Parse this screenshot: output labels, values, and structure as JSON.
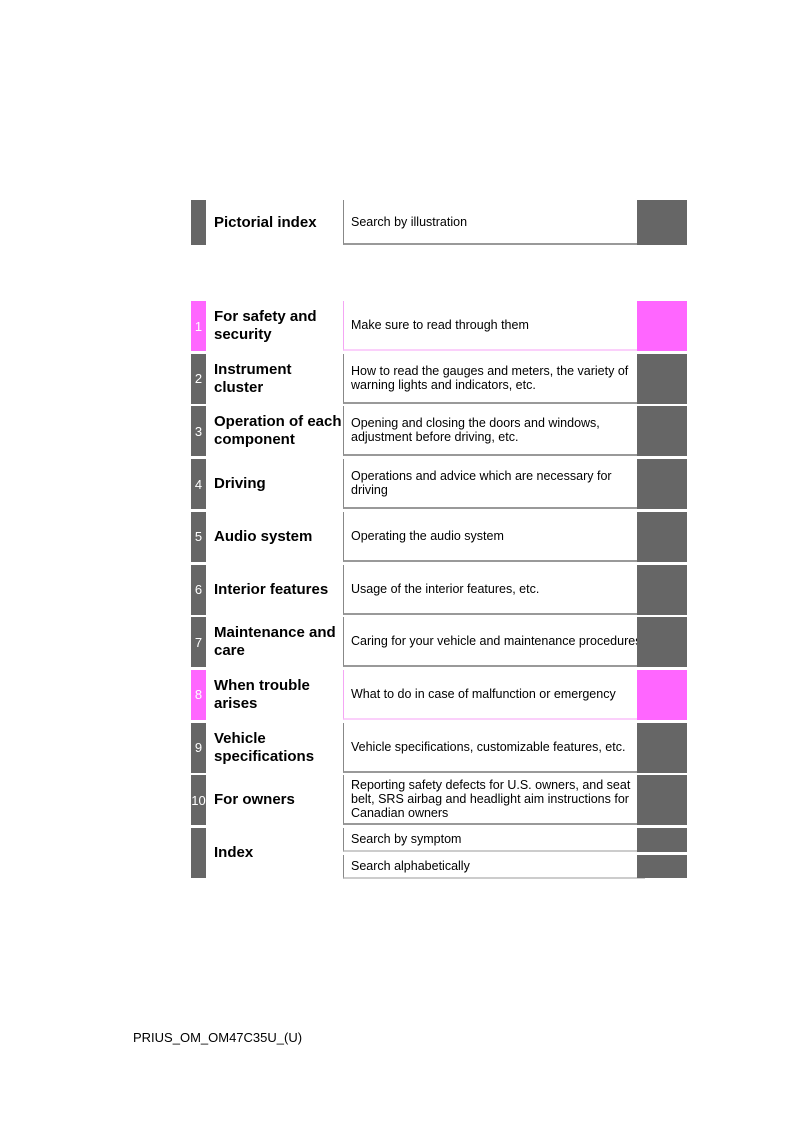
{
  "pictorial": {
    "title": "Pictorial index",
    "description": "Search by illustration"
  },
  "chapters": [
    {
      "number": "1",
      "title": "For safety and security",
      "description": "Make sure to read through them",
      "color": "#ff66ff"
    },
    {
      "number": "2",
      "title": "Instrument cluster",
      "description": "How to read the gauges and meters, the variety of warning lights and indicators, etc.",
      "color": "#666666"
    },
    {
      "number": "3",
      "title": "Operation of each component",
      "description": "Opening and closing the doors and windows, adjustment before driving, etc.",
      "color": "#666666"
    },
    {
      "number": "4",
      "title": "Driving",
      "description": "Operations and advice which are necessary for driving",
      "color": "#666666"
    },
    {
      "number": "5",
      "title": "Audio system",
      "description": "Operating the audio system",
      "color": "#666666"
    },
    {
      "number": "6",
      "title": "Interior features",
      "description": "Usage of the interior features, etc.",
      "color": "#666666"
    },
    {
      "number": "7",
      "title": "Maintenance and care",
      "description": "Caring for your vehicle and maintenance procedures",
      "color": "#666666"
    },
    {
      "number": "8",
      "title": "When trouble arises",
      "description": "What to do in case of malfunction or emergency",
      "color": "#ff66ff"
    },
    {
      "number": "9",
      "title": "Vehicle specifications",
      "description": "Vehicle specifications, customizable features, etc.",
      "color": "#666666"
    },
    {
      "number": "10",
      "title": "For owners",
      "description": "Reporting safety defects for U.S. owners, and seat belt, SRS airbag and headlight aim instructions for Canadian owners",
      "color": "#666666"
    }
  ],
  "index": {
    "title": "Index",
    "items": [
      "Search by symptom",
      "Search alphabetically"
    ]
  },
  "footer": "PRIUS_OM_OM47C35U_(U)"
}
